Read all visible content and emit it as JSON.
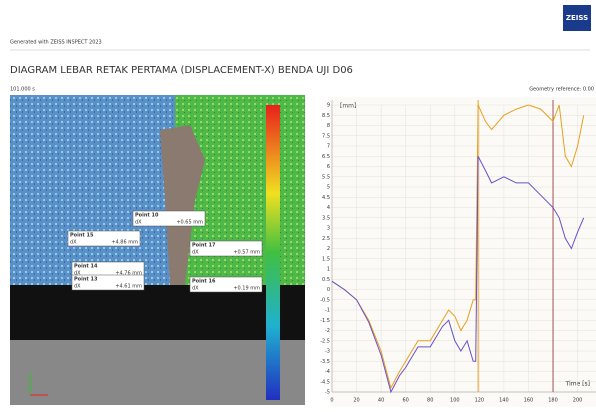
{
  "header": {
    "generated": "Generated with ZEISS INSPECT 2023",
    "logo": "ZEISS",
    "title": "DIAGRAM LEBAR RETAK PERTAMA (DISPLACEMENT-X) BENDA UJI D06",
    "stage_time": "101.000 s",
    "reference": "Geometry reference: 0.00"
  },
  "image": {
    "points": [
      {
        "name": "Point 10",
        "label": "dX",
        "value": "+0.65 mm"
      },
      {
        "name": "Point 15",
        "label": "dX",
        "value": "+4.86 mm"
      },
      {
        "name": "Point 17",
        "label": "dX",
        "value": "+0.57 mm"
      },
      {
        "name": "Point 14",
        "label": "dX",
        "value": "+4.76 mm"
      },
      {
        "name": "Point 13",
        "label": "dX",
        "value": "+4.61 mm"
      },
      {
        "name": "Point 16",
        "label": "dX",
        "value": "+0.19 mm"
      }
    ]
  },
  "chart_data": {
    "type": "line",
    "y_label": "[mm]",
    "x_label": "Time [s]",
    "x": [
      0,
      10,
      20,
      30,
      40,
      48,
      55,
      60,
      70,
      80,
      90,
      95,
      100,
      105,
      110,
      115,
      117,
      119,
      125,
      130,
      140,
      150,
      160,
      170,
      180,
      185,
      190,
      195,
      200,
      205
    ],
    "series": [
      {
        "name": "Point 15",
        "color": "#e8a020",
        "values": [
          0.4,
          0,
          -0.5,
          -1.5,
          -3,
          -4.8,
          -4,
          -3.5,
          -2.5,
          -2.5,
          -1.5,
          -1,
          -1.3,
          -2,
          -1.5,
          -0.5,
          -0.5,
          9,
          8.2,
          7.8,
          8.5,
          8.8,
          9,
          8.8,
          8.2,
          9,
          6.5,
          6,
          7,
          8.5
        ]
      },
      {
        "name": "Point 14",
        "color": "#6a4fc8",
        "values": [
          0.4,
          0,
          -0.5,
          -1.6,
          -3.2,
          -5,
          -4.2,
          -3.8,
          -2.8,
          -2.8,
          -1.8,
          -1.5,
          -2.5,
          -3,
          -2.5,
          -3.5,
          -3.5,
          6.5,
          5.8,
          5.2,
          5.5,
          5.2,
          5.2,
          4.6,
          4,
          3.5,
          2.5,
          2,
          2.8,
          3.5
        ]
      }
    ],
    "vlines": [
      {
        "x": 119,
        "color": "#e8a020"
      },
      {
        "x": 180,
        "color": "#a05050"
      }
    ],
    "xlim": [
      0,
      215
    ],
    "ylim": [
      -5,
      9
    ],
    "xticks": [
      0,
      20,
      40,
      60,
      80,
      100,
      120,
      140,
      160,
      180,
      200
    ],
    "yticks": [
      -5,
      -4.5,
      -4,
      -3.5,
      -3,
      -2.5,
      -2,
      -1.5,
      -1,
      -0.5,
      0,
      0.5,
      1,
      1.5,
      2,
      2.5,
      3,
      3.5,
      4,
      4.5,
      5,
      5.5,
      6,
      6.5,
      7,
      7.5,
      8,
      8.5,
      9
    ],
    "grid": true
  }
}
